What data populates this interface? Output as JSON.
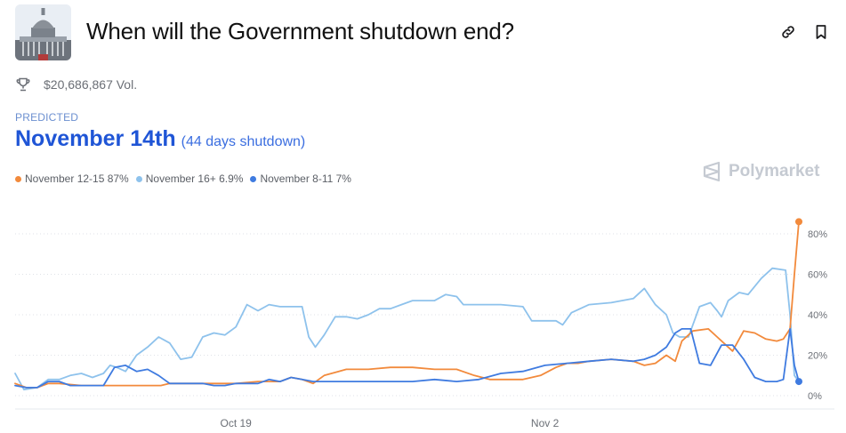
{
  "market": {
    "title": "When will the Government shutdown end?",
    "volume": "$20,686,867 Vol.",
    "predicted_label": "PREDICTED",
    "predicted_value": "November 14th",
    "predicted_sub": "(44 days shutdown)",
    "brand": "Polymarket"
  },
  "icons": {
    "thumbnail": "capitol-building-image",
    "link": "link-icon",
    "bookmark": "bookmark-icon",
    "volume": "trophy-icon",
    "brand": "polymarket-logo-icon"
  },
  "legend": [
    {
      "label": "November 12-15 87%",
      "color": "#f28a3c"
    },
    {
      "label": "November 16+ 6.9%",
      "color": "#8ec2ec"
    },
    {
      "label": "November 8-11 7%",
      "color": "#3f7be0"
    }
  ],
  "chart_data": {
    "type": "line",
    "x_range": [
      "Oct 9",
      "Nov 11"
    ],
    "x_ticks": [
      {
        "label": "Oct 19",
        "x": 10
      },
      {
        "label": "Nov 2",
        "x": 24
      }
    ],
    "y_ticks": [
      0,
      20,
      40,
      60,
      80
    ],
    "y_tick_suffix": "%",
    "ylim": [
      0,
      86
    ],
    "grid": "horizontal-dotted",
    "y_axis_side": "right",
    "series": [
      {
        "name": "November 12-15",
        "color": "#f28a3c",
        "end_marker": true,
        "points": [
          [
            0,
            6
          ],
          [
            0.5,
            4
          ],
          [
            1,
            4
          ],
          [
            1.5,
            6
          ],
          [
            2,
            6
          ],
          [
            3,
            5
          ],
          [
            4,
            5
          ],
          [
            5,
            5
          ],
          [
            6,
            5
          ],
          [
            6.6,
            5
          ],
          [
            7,
            6
          ],
          [
            8,
            6
          ],
          [
            9,
            6
          ],
          [
            10,
            6
          ],
          [
            11,
            7
          ],
          [
            12,
            7
          ],
          [
            12.5,
            9
          ],
          [
            13,
            8
          ],
          [
            13.5,
            6
          ],
          [
            14,
            10
          ],
          [
            15,
            13
          ],
          [
            16,
            13
          ],
          [
            17,
            14
          ],
          [
            18,
            14
          ],
          [
            19,
            13
          ],
          [
            20,
            13
          ],
          [
            20.8,
            10
          ],
          [
            21.5,
            8
          ],
          [
            22,
            8
          ],
          [
            23,
            8
          ],
          [
            23.8,
            10
          ],
          [
            24.5,
            14
          ],
          [
            25,
            16
          ],
          [
            25.5,
            16
          ],
          [
            26,
            17
          ],
          [
            27,
            18
          ],
          [
            28,
            17
          ],
          [
            28.5,
            15
          ],
          [
            29,
            16
          ],
          [
            29.5,
            20
          ],
          [
            29.9,
            17
          ],
          [
            30.2,
            27
          ],
          [
            30.7,
            32
          ],
          [
            31.4,
            33
          ],
          [
            31.8,
            29
          ],
          [
            32.5,
            22
          ],
          [
            33,
            32
          ],
          [
            33.5,
            31
          ],
          [
            34,
            28
          ],
          [
            34.5,
            27
          ],
          [
            34.8,
            28
          ],
          [
            35.1,
            33
          ],
          [
            35.3,
            60
          ],
          [
            35.5,
            86
          ]
        ]
      },
      {
        "name": "November 16+",
        "color": "#8ec2ec",
        "end_marker": false,
        "points": [
          [
            0,
            11
          ],
          [
            0.4,
            3
          ],
          [
            1,
            4
          ],
          [
            1.5,
            8
          ],
          [
            2,
            8
          ],
          [
            2.5,
            10
          ],
          [
            3,
            11
          ],
          [
            3.5,
            9
          ],
          [
            4,
            11
          ],
          [
            4.3,
            15
          ],
          [
            4.6,
            14
          ],
          [
            5,
            12
          ],
          [
            5.5,
            20
          ],
          [
            6,
            24
          ],
          [
            6.5,
            29
          ],
          [
            7,
            26
          ],
          [
            7.5,
            18
          ],
          [
            8,
            19
          ],
          [
            8.5,
            29
          ],
          [
            9,
            31
          ],
          [
            9.5,
            30
          ],
          [
            10,
            34
          ],
          [
            10.5,
            45
          ],
          [
            11,
            42
          ],
          [
            11.5,
            45
          ],
          [
            12,
            44
          ],
          [
            13,
            44
          ],
          [
            13.3,
            29
          ],
          [
            13.6,
            24
          ],
          [
            14,
            30
          ],
          [
            14.5,
            39
          ],
          [
            15,
            39
          ],
          [
            15.5,
            38
          ],
          [
            16,
            40
          ],
          [
            16.5,
            43
          ],
          [
            17,
            43
          ],
          [
            17.5,
            45
          ],
          [
            18,
            47
          ],
          [
            18.5,
            47
          ],
          [
            19,
            47
          ],
          [
            19.5,
            50
          ],
          [
            20,
            49
          ],
          [
            20.3,
            45
          ],
          [
            21,
            45
          ],
          [
            22,
            45
          ],
          [
            23,
            44
          ],
          [
            23.4,
            37
          ],
          [
            24,
            37
          ],
          [
            24.5,
            37
          ],
          [
            24.8,
            35
          ],
          [
            25.2,
            41
          ],
          [
            26,
            45
          ],
          [
            27,
            46
          ],
          [
            28,
            48
          ],
          [
            28.5,
            53
          ],
          [
            29,
            45
          ],
          [
            29.5,
            40
          ],
          [
            29.8,
            31
          ],
          [
            30.1,
            29
          ],
          [
            30.5,
            29
          ],
          [
            31,
            44
          ],
          [
            31.5,
            46
          ],
          [
            31.8,
            42
          ],
          [
            32,
            39
          ],
          [
            32.3,
            47
          ],
          [
            32.8,
            51
          ],
          [
            33.2,
            50
          ],
          [
            33.8,
            58
          ],
          [
            34.3,
            63
          ],
          [
            34.9,
            62
          ],
          [
            35.1,
            40
          ],
          [
            35.3,
            10
          ],
          [
            35.5,
            7
          ]
        ]
      },
      {
        "name": "November 8-11",
        "color": "#3f7be0",
        "end_marker": true,
        "points": [
          [
            0,
            5
          ],
          [
            0.5,
            4
          ],
          [
            1,
            4
          ],
          [
            1.5,
            7
          ],
          [
            2,
            7
          ],
          [
            2.5,
            5
          ],
          [
            3,
            5
          ],
          [
            4,
            5
          ],
          [
            4.5,
            14
          ],
          [
            5,
            15
          ],
          [
            5.5,
            12
          ],
          [
            6,
            13
          ],
          [
            6.5,
            10
          ],
          [
            7,
            6
          ],
          [
            8,
            6
          ],
          [
            8.5,
            6
          ],
          [
            9,
            5
          ],
          [
            9.5,
            5
          ],
          [
            10,
            6
          ],
          [
            11,
            6
          ],
          [
            11.5,
            8
          ],
          [
            12,
            7
          ],
          [
            12.5,
            9
          ],
          [
            13,
            8
          ],
          [
            13.5,
            7
          ],
          [
            14,
            7
          ],
          [
            15,
            7
          ],
          [
            16,
            7
          ],
          [
            17,
            7
          ],
          [
            18,
            7
          ],
          [
            19,
            8
          ],
          [
            20,
            7
          ],
          [
            21,
            8
          ],
          [
            22,
            11
          ],
          [
            23,
            12
          ],
          [
            24,
            15
          ],
          [
            25,
            16
          ],
          [
            26,
            17
          ],
          [
            27,
            18
          ],
          [
            28,
            17
          ],
          [
            28.5,
            18
          ],
          [
            29,
            20
          ],
          [
            29.5,
            24
          ],
          [
            29.9,
            31
          ],
          [
            30.2,
            33
          ],
          [
            30.6,
            33
          ],
          [
            31,
            16
          ],
          [
            31.5,
            15
          ],
          [
            32,
            25
          ],
          [
            32.5,
            25
          ],
          [
            33,
            18
          ],
          [
            33.5,
            9
          ],
          [
            34,
            7
          ],
          [
            34.5,
            7
          ],
          [
            34.8,
            8
          ],
          [
            35.1,
            33
          ],
          [
            35.3,
            15
          ],
          [
            35.5,
            7
          ]
        ]
      }
    ]
  }
}
